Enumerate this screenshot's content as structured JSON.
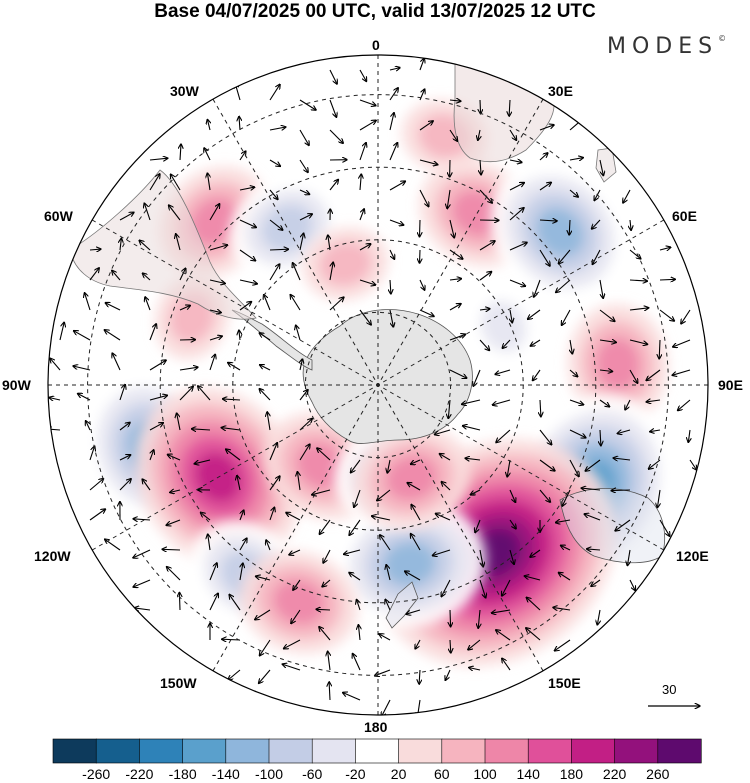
{
  "title": "Base 04/07/2025 00 UTC, valid 13/07/2025 12 UTC",
  "brand": "MODES",
  "brand_mark": "©",
  "longitude_labels": {
    "n0": "0",
    "e30": "30E",
    "e60": "60E",
    "e90": "90E",
    "e120": "120E",
    "e150": "150E",
    "s180": "180",
    "w150": "150W",
    "w120": "120W",
    "w90": "90W",
    "w60": "60W",
    "w30": "30W"
  },
  "vector_scale": "30",
  "colorbar": {
    "labels": [
      "-260",
      "-220",
      "-180",
      "-140",
      "-100",
      "-60",
      "-20",
      "20",
      "60",
      "100",
      "140",
      "180",
      "220",
      "260"
    ],
    "colors": [
      "#0d3a5c",
      "#155f8e",
      "#2e82b8",
      "#5aa0cc",
      "#8fb6dc",
      "#c3cde6",
      "#e4e4f1",
      "#ffffff",
      "#f9dcdc",
      "#f6b4bf",
      "#ee86a8",
      "#e0509a",
      "#c21f85",
      "#93117c",
      "#5e0a6e"
    ]
  },
  "map": {
    "anomalies": [
      {
        "lon": 15,
        "r": 0.78,
        "value": 40
      },
      {
        "lon": 30,
        "r": 0.6,
        "value": 70
      },
      {
        "lon": -45,
        "r": 0.7,
        "value": 60
      },
      {
        "lon": -30,
        "r": 0.55,
        "value": -70
      },
      {
        "lon": 50,
        "r": 0.72,
        "value": -100
      },
      {
        "lon": 85,
        "r": 0.73,
        "value": 80
      },
      {
        "lon": 115,
        "r": 0.72,
        "value": -170
      },
      {
        "lon": 145,
        "r": 0.62,
        "value": 230
      },
      {
        "lon": 170,
        "r": 0.55,
        "value": -110
      },
      {
        "lon": -105,
        "r": 0.72,
        "value": -130
      },
      {
        "lon": -120,
        "r": 0.56,
        "value": 170
      },
      {
        "lon": -145,
        "r": 0.7,
        "value": -80
      },
      {
        "lon": -160,
        "r": 0.7,
        "value": 60
      },
      {
        "lon": -145,
        "r": 0.3,
        "value": 60
      },
      {
        "lon": 170,
        "r": 0.28,
        "value": -60
      },
      {
        "lon": 160,
        "r": 0.3,
        "value": 80
      },
      {
        "lon": -70,
        "r": 0.6,
        "value": 40
      },
      {
        "lon": 65,
        "r": 0.42,
        "value": -40
      },
      {
        "lon": -15,
        "r": 0.38,
        "value": 30
      }
    ]
  }
}
